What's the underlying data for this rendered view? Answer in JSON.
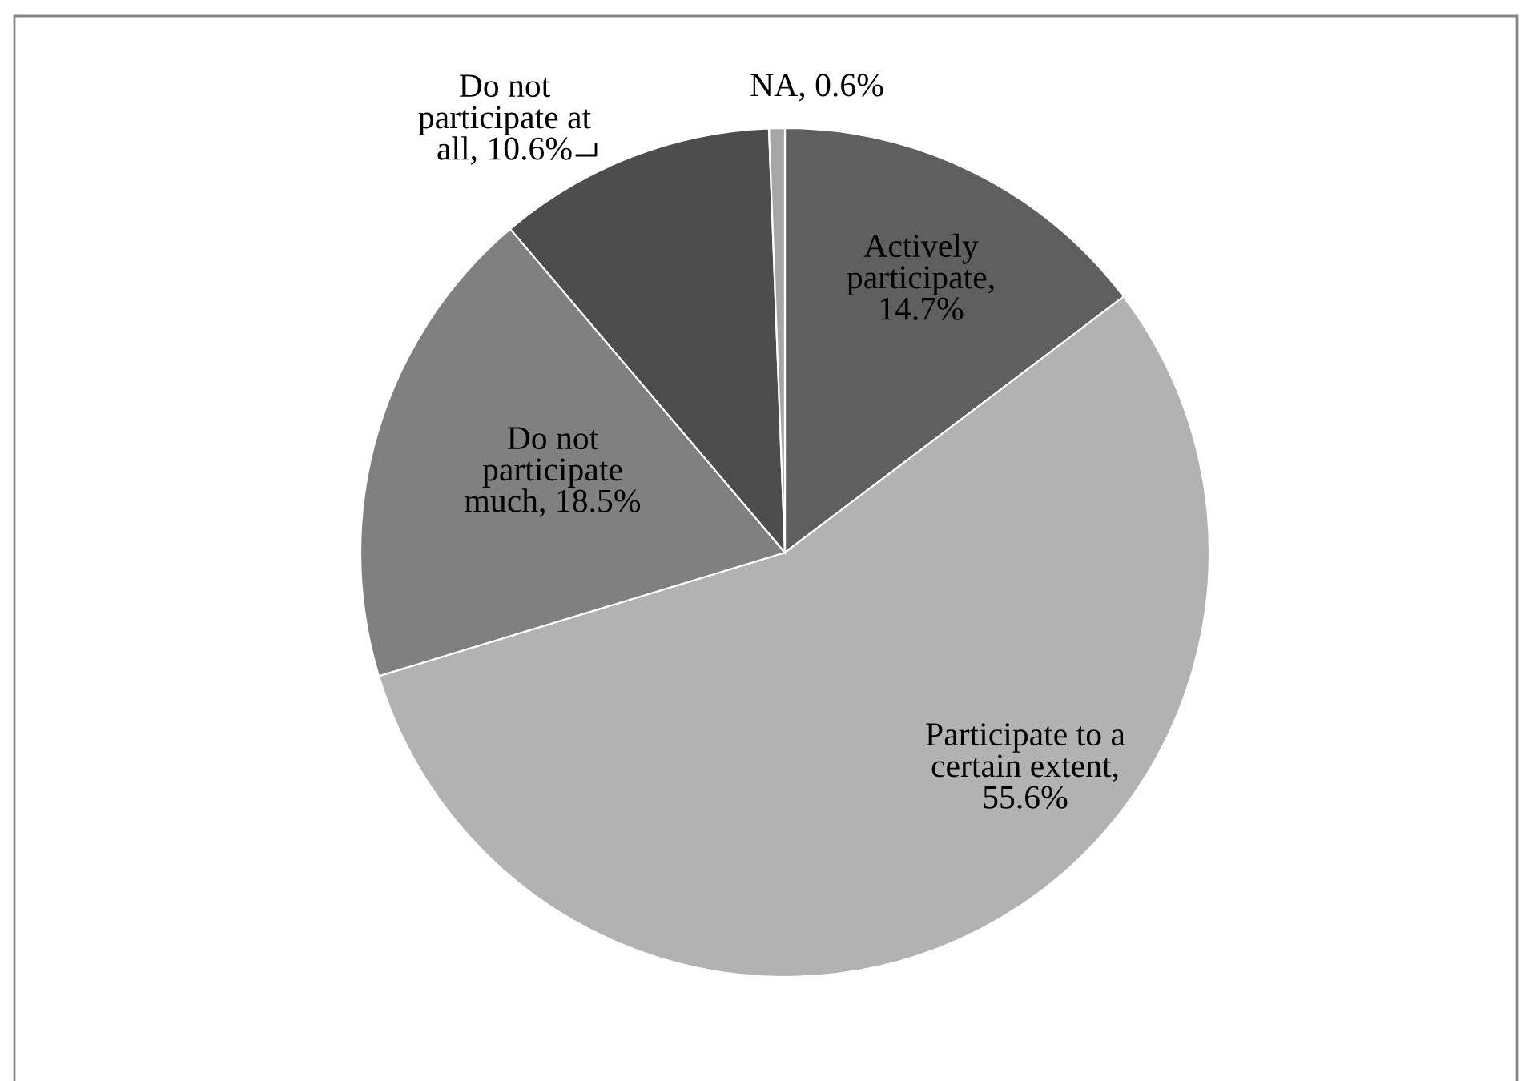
{
  "chart_data": {
    "type": "pie",
    "categories": [
      "Actively\nparticipate",
      "Participate to a\ncertain extent",
      "Do not\nparticipate\nmuch",
      "Do not\nparticipate at\nall",
      "NA"
    ],
    "values": [
      14.7,
      55.6,
      18.5,
      10.6,
      0.6
    ],
    "colors": [
      "#5f5f5f",
      "#b2b2b2",
      "#808080",
      "#4d4d4d",
      "#a6a6a6"
    ],
    "value_labels": [
      ",\n14.7%",
      ",\n55.6%",
      ", 18.5%",
      ", 10.6%",
      ", 0.6%"
    ],
    "legend": false
  }
}
